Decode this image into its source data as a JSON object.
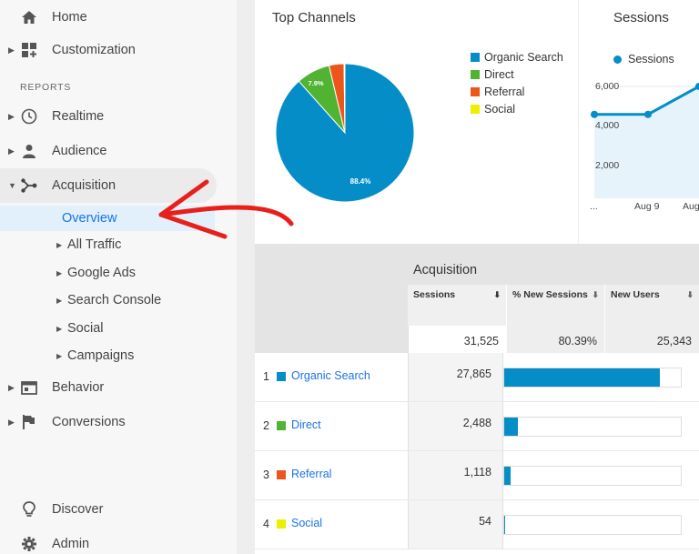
{
  "sidebar": {
    "home": "Home",
    "customization": "Customization",
    "section_label": "REPORTS",
    "realtime": "Realtime",
    "audience": "Audience",
    "acquisition": "Acquisition",
    "overview": "Overview",
    "sub_items": [
      "All Traffic",
      "Google Ads",
      "Search Console",
      "Social",
      "Campaigns"
    ],
    "behavior": "Behavior",
    "conversions": "Conversions",
    "discover": "Discover",
    "admin": "Admin"
  },
  "top_channels": {
    "title": "Top Channels",
    "legend": [
      "Organic Search",
      "Direct",
      "Referral",
      "Social"
    ],
    "slice_labels": {
      "organic": "88.4%",
      "direct": "7.9%"
    }
  },
  "sessions_card": {
    "title": "Sessions",
    "legend": "Sessions",
    "y_ticks": [
      "6,000",
      "4,000",
      "2,000"
    ],
    "x_ticks": [
      "...",
      "Aug 9",
      "Aug"
    ]
  },
  "table": {
    "title": "Acquisition",
    "columns": [
      "Sessions",
      "% New Sessions",
      "New Users"
    ],
    "totals": [
      "31,525",
      "80.39%",
      "25,343"
    ],
    "rows": [
      {
        "idx": "1",
        "name": "Organic Search",
        "sessions": "27,865"
      },
      {
        "idx": "2",
        "name": "Direct",
        "sessions": "2,488"
      },
      {
        "idx": "3",
        "name": "Referral",
        "sessions": "1,118"
      },
      {
        "idx": "4",
        "name": "Social",
        "sessions": "54"
      }
    ]
  },
  "chart_data": [
    {
      "type": "pie",
      "title": "Top Channels",
      "categories": [
        "Organic Search",
        "Direct",
        "Referral",
        "Social"
      ],
      "values": [
        88.4,
        7.9,
        3.5,
        0.2
      ],
      "colors": [
        "#058dc7",
        "#50b432",
        "#ed561b",
        "#edef00"
      ]
    },
    {
      "type": "line",
      "title": "Sessions",
      "series": [
        {
          "name": "Sessions",
          "values": [
            4500,
            4500,
            6000
          ]
        }
      ],
      "x": [
        "...",
        "Aug 9",
        "Aug"
      ],
      "ylim": [
        0,
        6000
      ],
      "color": "#058dc7"
    }
  ],
  "colors": {
    "accent": "#1a73e8",
    "organic": "#058dc7",
    "direct": "#50b432",
    "referral": "#ed561b",
    "social": "#edef00",
    "arrow": "#e8201c"
  }
}
